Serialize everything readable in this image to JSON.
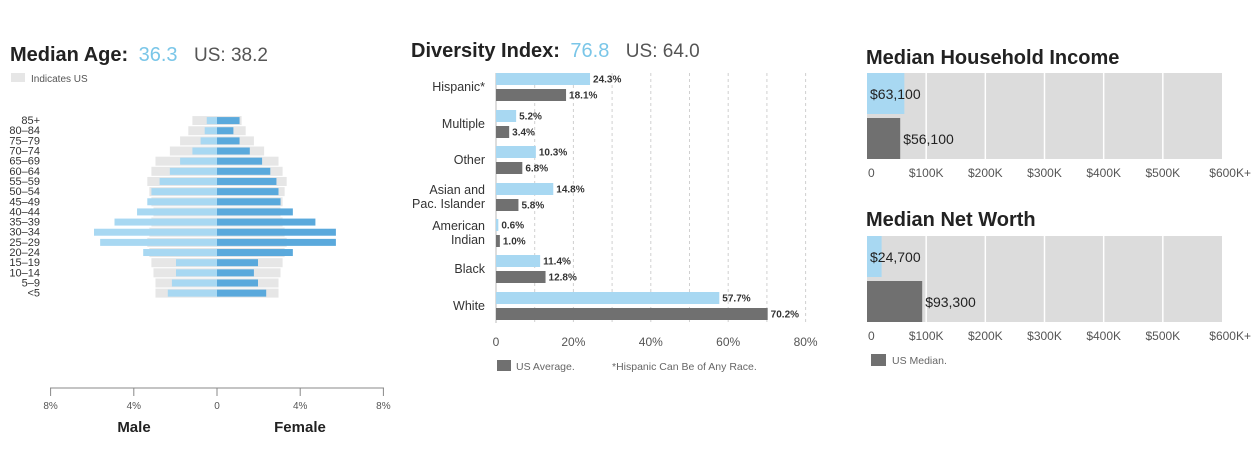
{
  "age": {
    "title": "Median Age:",
    "value": "36.3",
    "us_label": "US: 38.2",
    "legend": "Indicates US",
    "xlabel_left": "Male",
    "xlabel_right": "Female",
    "colors": {
      "area": "#5aa9dc",
      "us": "#e6e6e6",
      "male": "#a8d8f2",
      "axis": "#888888"
    }
  },
  "diversity": {
    "title": "Diversity Index:",
    "value": "76.8",
    "us_label": "US: 64.0",
    "legend_us": "US Average.",
    "footnote": "*Hispanic Can Be of Any Race.",
    "colors": {
      "area": "#a8d8f2",
      "us": "#707070"
    }
  },
  "income": {
    "title": "Median Household Income",
    "colors": {
      "area": "#a8d8f2",
      "us": "#707070",
      "track": "#dcdcdc"
    }
  },
  "networth": {
    "title": "Median Net Worth",
    "legend_us": "US Median."
  },
  "chart_data": [
    {
      "type": "bar",
      "subtype": "population-pyramid",
      "title": "Median Age: 36.3 US: 38.2",
      "categories": [
        "85+",
        "80–84",
        "75–79",
        "70–74",
        "65–69",
        "60–64",
        "55–59",
        "50–54",
        "45–49",
        "40–44",
        "35–39",
        "30–34",
        "25–29",
        "20–24",
        "15–19",
        "10–14",
        "5–9",
        "<5"
      ],
      "series": [
        {
          "name": "Male",
          "values": [
            0.5,
            0.6,
            0.8,
            1.2,
            1.8,
            2.3,
            2.8,
            3.2,
            3.4,
            3.9,
            5.0,
            6.0,
            5.7,
            3.6,
            2.0,
            2.0,
            2.2,
            2.4
          ]
        },
        {
          "name": "Female",
          "values": [
            1.1,
            0.8,
            1.1,
            1.6,
            2.2,
            2.6,
            2.9,
            3.0,
            3.1,
            3.7,
            4.8,
            5.8,
            5.8,
            3.7,
            2.0,
            1.8,
            2.0,
            2.4
          ]
        },
        {
          "name": "Indicates US",
          "values": [
            1.2,
            1.4,
            1.8,
            2.3,
            3.0,
            3.2,
            3.4,
            3.3,
            3.2,
            3.1,
            3.2,
            3.3,
            3.4,
            3.3,
            3.2,
            3.1,
            3.0,
            3.0
          ]
        }
      ],
      "xticks": [
        "8%",
        "4%",
        "0",
        "4%",
        "8%"
      ],
      "xlim": [
        -8,
        8
      ],
      "xlabel": "",
      "ylabel": ""
    },
    {
      "type": "bar",
      "orientation": "horizontal",
      "title": "Diversity Index: 76.8 US: 64.0",
      "categories": [
        "Hispanic*",
        "Multiple",
        "Other",
        "Asian and Pac. Islander",
        "American Indian",
        "Black",
        "White"
      ],
      "category_lines": [
        [
          "Hispanic*"
        ],
        [
          "Multiple"
        ],
        [
          "Other"
        ],
        [
          "Asian and",
          "Pac. Islander"
        ],
        [
          "American",
          "Indian"
        ],
        [
          "Black"
        ],
        [
          "White"
        ]
      ],
      "series": [
        {
          "name": "",
          "values": [
            24.3,
            5.2,
            10.3,
            14.8,
            0.6,
            11.4,
            57.7
          ],
          "labels": [
            "24.3%",
            "5.2%",
            "10.3%",
            "14.8%",
            "0.6%",
            "11.4%",
            "57.7%"
          ]
        },
        {
          "name": "US Average.",
          "values": [
            18.1,
            3.4,
            6.8,
            5.8,
            1.0,
            12.8,
            70.2
          ],
          "labels": [
            "18.1%",
            "3.4%",
            "6.8%",
            "5.8%",
            "1.0%",
            "12.8%",
            "70.2%"
          ]
        }
      ],
      "xticks": [
        "0",
        "20%",
        "40%",
        "60%",
        "80%"
      ],
      "xlim": [
        0,
        80
      ],
      "grid": true
    },
    {
      "type": "bar",
      "orientation": "horizontal",
      "title": "Median Household Income",
      "series": [
        {
          "name": "",
          "values": [
            63100
          ],
          "labels": [
            "$63,100"
          ]
        },
        {
          "name": "US Median.",
          "values": [
            56100
          ],
          "labels": [
            "$56,100"
          ]
        }
      ],
      "xticks": [
        "0",
        "$100K",
        "$200K",
        "$300K",
        "$400K",
        "$500K",
        "$600K+"
      ],
      "xlim": [
        0,
        600000
      ]
    },
    {
      "type": "bar",
      "orientation": "horizontal",
      "title": "Median Net Worth",
      "series": [
        {
          "name": "",
          "values": [
            24700
          ],
          "labels": [
            "$24,700"
          ]
        },
        {
          "name": "US Median.",
          "values": [
            93300
          ],
          "labels": [
            "$93,300"
          ]
        }
      ],
      "xticks": [
        "0",
        "$100K",
        "$200K",
        "$300K",
        "$400K",
        "$500K",
        "$600K+"
      ],
      "xlim": [
        0,
        600000
      ]
    }
  ]
}
